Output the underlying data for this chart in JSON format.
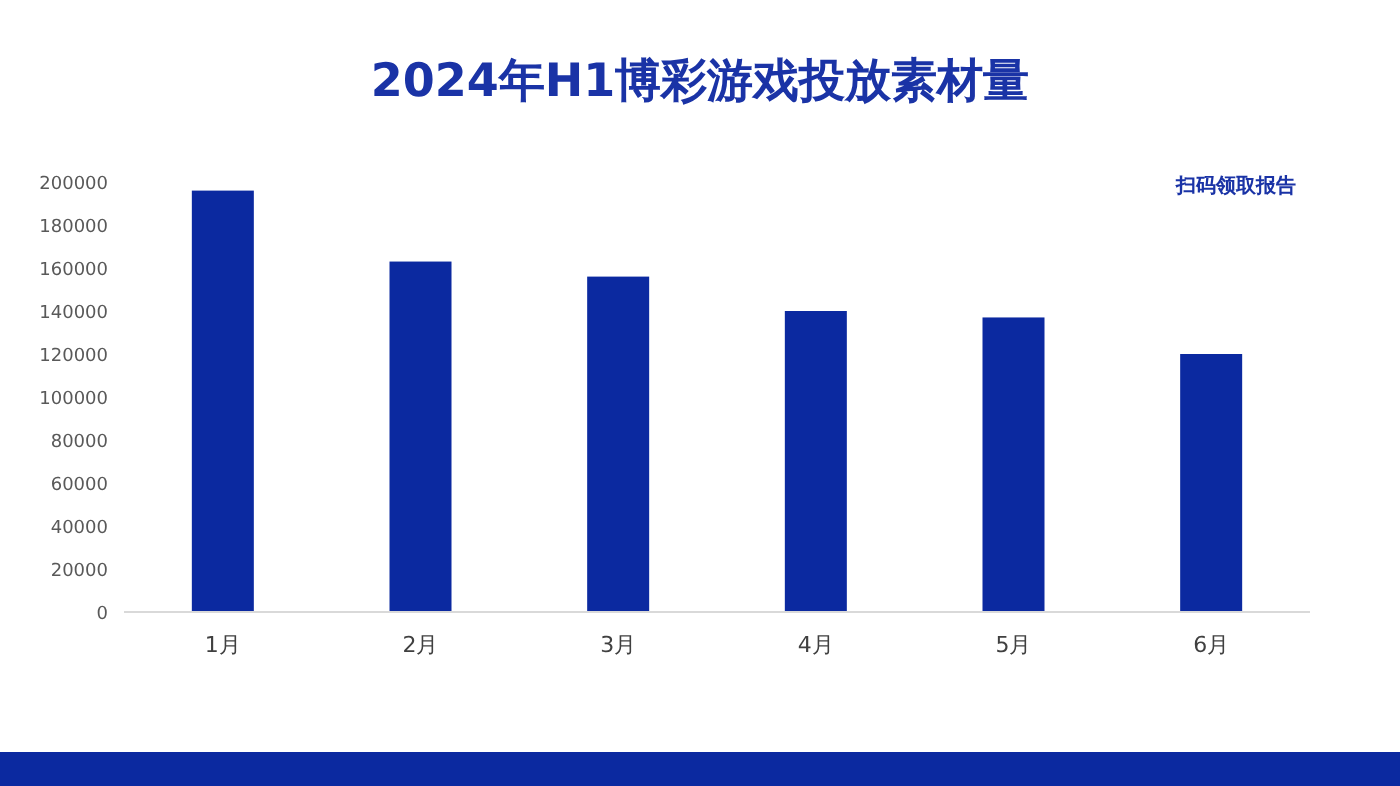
{
  "chart_data": {
    "type": "bar",
    "title": "2024年H1博彩游戏投放素材量",
    "categories": [
      "1月",
      "2月",
      "3月",
      "4月",
      "5月",
      "6月"
    ],
    "values": [
      196000,
      163000,
      156000,
      140000,
      137000,
      120000
    ],
    "color": "#0b29a0",
    "ylim": [
      0,
      200000
    ],
    "yticks": [
      0,
      20000,
      40000,
      60000,
      80000,
      100000,
      120000,
      140000,
      160000,
      180000,
      200000
    ],
    "grid": false,
    "annotations": [
      "扫码领取报告"
    ]
  }
}
